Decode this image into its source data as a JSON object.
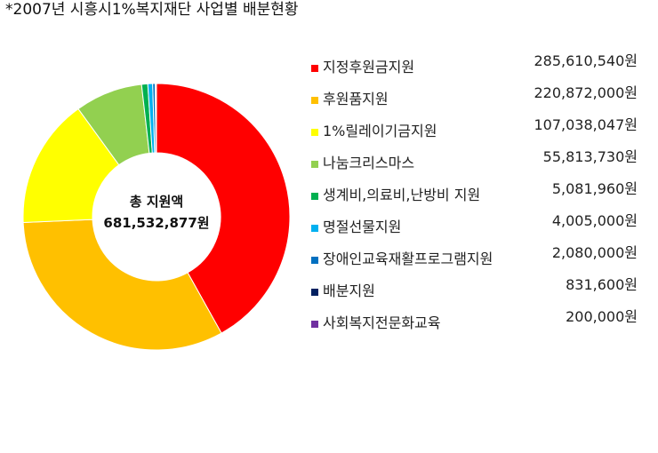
{
  "title": "*2007년 시흥시1%복지재단 사업별 배분현황",
  "center": {
    "line1": "총 지원액",
    "line2": "681,532,877원"
  },
  "chart_data": {
    "type": "pie",
    "title": "*2007년 시흥시1%복지재단 사업별 배분현황",
    "total_label": "총 지원액",
    "total": 681532877,
    "unit": "원",
    "legend_position": "right",
    "categories": [
      "지정후원금지원",
      "후원품지원",
      "1%릴레이기금지원",
      "나눔크리스마스",
      "생계비,의료비,난방비 지원",
      "명절선물지원",
      "장애인교육재활프로그램지원",
      "배분지원",
      "사회복지전문화교육"
    ],
    "values": [
      285610540,
      220872000,
      107038047,
      55813730,
      5081960,
      4005000,
      2080000,
      831600,
      200000
    ],
    "value_labels": [
      "285,610,540원",
      "220,872,000원",
      "107,038,047원",
      "55,813,730원",
      "5,081,960원",
      "4,005,000원",
      "2,080,000원",
      "831,600원",
      "200,000원"
    ],
    "colors": [
      "#ff0000",
      "#ffc000",
      "#ffff00",
      "#92d050",
      "#00b050",
      "#00b0f0",
      "#0070c0",
      "#002060",
      "#7030a0"
    ]
  }
}
